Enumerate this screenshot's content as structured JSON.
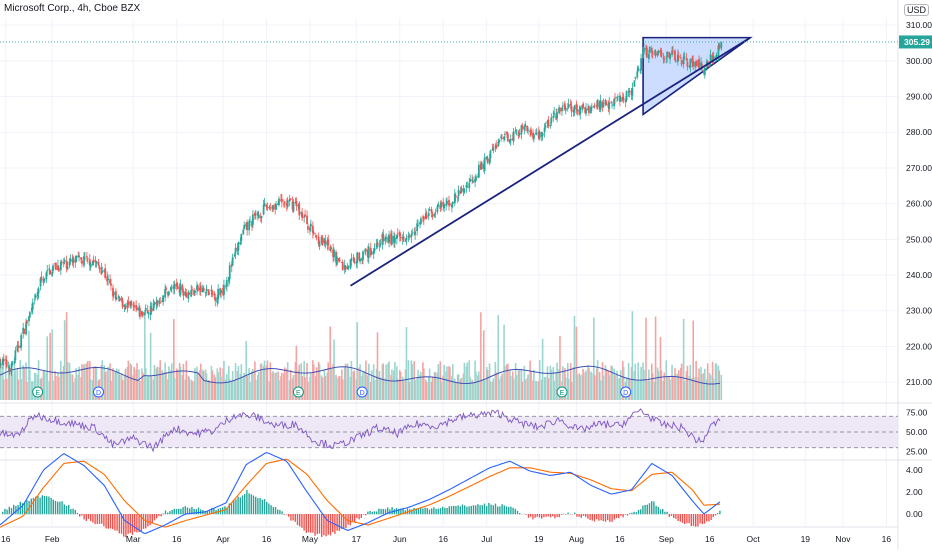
{
  "header": {
    "title": "Microsoft Corp., 4h, Cboe BZX",
    "currency": "USD"
  },
  "colors": {
    "up": "#26a69a",
    "down": "#ef5350",
    "volume_up": "#9ad6cf",
    "volume_down": "#f5a3a2",
    "volume_ma": "#3f51b5",
    "trendline": "#1a237e",
    "triangle_fill": "#bbd1ff",
    "last_price": "#26a69a",
    "rsi": "#7e57c2",
    "rsi_band": "#ede7f6",
    "macd_line": "#2962ff",
    "signal_line": "#ff6d00",
    "hist_up": "#26a69a",
    "hist_down": "#ef5350"
  },
  "chart_data": {
    "type": "candlestick",
    "price_axis": {
      "min": 205,
      "max": 312,
      "ticks": [
        310,
        300,
        290,
        280,
        270,
        260,
        250,
        240,
        230,
        220,
        210
      ]
    },
    "last_price": 305.29,
    "time_axis": {
      "start": "2021-01-14",
      "end": "2021-11-20",
      "ticks": [
        {
          "label": "16",
          "date": "2021-01-16"
        },
        {
          "label": "Feb",
          "date": "2021-02-01"
        },
        {
          "label": "Mar",
          "date": "2021-03-01"
        },
        {
          "label": "16",
          "date": "2021-03-16"
        },
        {
          "label": "Apr",
          "date": "2021-04-01"
        },
        {
          "label": "16",
          "date": "2021-04-16"
        },
        {
          "label": "May",
          "date": "2021-05-01"
        },
        {
          "label": "17",
          "date": "2021-05-17"
        },
        {
          "label": "Jun",
          "date": "2021-06-01"
        },
        {
          "label": "16",
          "date": "2021-06-16"
        },
        {
          "label": "Jul",
          "date": "2021-07-01"
        },
        {
          "label": "19",
          "date": "2021-07-19"
        },
        {
          "label": "Aug",
          "date": "2021-08-01"
        },
        {
          "label": "16",
          "date": "2021-08-16"
        },
        {
          "label": "Sep",
          "date": "2021-09-01"
        },
        {
          "label": "16",
          "date": "2021-09-16"
        },
        {
          "label": "Oct",
          "date": "2021-10-01"
        },
        {
          "label": "19",
          "date": "2021-10-19"
        },
        {
          "label": "Nov",
          "date": "2021-11-01"
        },
        {
          "label": "16",
          "date": "2021-11-16"
        }
      ]
    },
    "close_path": [
      [
        "2021-01-14",
        216
      ],
      [
        "2021-01-18",
        214
      ],
      [
        "2021-01-22",
        224
      ],
      [
        "2021-01-26",
        232
      ],
      [
        "2021-01-28",
        238
      ],
      [
        "2021-02-01",
        242
      ],
      [
        "2021-02-05",
        243
      ],
      [
        "2021-02-10",
        244
      ],
      [
        "2021-02-15",
        244
      ],
      [
        "2021-02-19",
        241
      ],
      [
        "2021-02-23",
        233
      ],
      [
        "2021-02-26",
        232
      ],
      [
        "2021-03-04",
        229
      ],
      [
        "2021-03-08",
        231
      ],
      [
        "2021-03-12",
        235
      ],
      [
        "2021-03-16",
        237
      ],
      [
        "2021-03-20",
        235
      ],
      [
        "2021-03-24",
        236
      ],
      [
        "2021-03-29",
        234
      ],
      [
        "2021-04-01",
        236
      ],
      [
        "2021-04-05",
        245
      ],
      [
        "2021-04-08",
        252
      ],
      [
        "2021-04-12",
        256
      ],
      [
        "2021-04-16",
        259
      ],
      [
        "2021-04-21",
        260
      ],
      [
        "2021-04-26",
        260
      ],
      [
        "2021-04-29",
        256
      ],
      [
        "2021-05-03",
        251
      ],
      [
        "2021-05-07",
        248
      ],
      [
        "2021-05-11",
        244
      ],
      [
        "2021-05-13",
        242
      ],
      [
        "2021-05-17",
        245
      ],
      [
        "2021-05-21",
        246
      ],
      [
        "2021-05-26",
        250
      ],
      [
        "2021-05-31",
        250
      ],
      [
        "2021-06-03",
        251
      ],
      [
        "2021-06-07",
        254
      ],
      [
        "2021-06-11",
        257
      ],
      [
        "2021-06-16",
        259
      ],
      [
        "2021-06-21",
        262
      ],
      [
        "2021-06-25",
        266
      ],
      [
        "2021-06-30",
        271
      ],
      [
        "2021-07-05",
        277
      ],
      [
        "2021-07-09",
        279
      ],
      [
        "2021-07-14",
        281
      ],
      [
        "2021-07-19",
        279
      ],
      [
        "2021-07-24",
        284
      ],
      [
        "2021-07-28",
        287
      ],
      [
        "2021-08-02",
        286
      ],
      [
        "2021-08-06",
        287
      ],
      [
        "2021-08-10",
        288
      ],
      [
        "2021-08-14",
        289
      ],
      [
        "2021-08-18",
        290
      ],
      [
        "2021-08-21",
        293
      ],
      [
        "2021-08-24",
        302
      ],
      [
        "2021-08-27",
        303
      ],
      [
        "2021-08-31",
        302
      ],
      [
        "2021-09-04",
        301
      ],
      [
        "2021-09-08",
        300
      ],
      [
        "2021-09-11",
        299
      ],
      [
        "2021-09-14",
        298
      ],
      [
        "2021-09-17",
        301
      ],
      [
        "2021-09-20",
        305
      ]
    ],
    "ascending_trendline": {
      "from": [
        "2021-05-15",
        237.0
      ],
      "to": [
        "2021-09-30",
        306.5
      ]
    },
    "triangle": {
      "top": [
        "2021-08-24",
        306.5
      ],
      "right": [
        "2021-09-30",
        306.5
      ],
      "bottom": [
        "2021-08-24",
        285.0
      ]
    },
    "events": [
      {
        "type": "earnings",
        "label": "E",
        "date": "2021-01-27"
      },
      {
        "type": "dividend",
        "label": "D",
        "date": "2021-02-17"
      },
      {
        "type": "earnings",
        "label": "E",
        "date": "2021-04-27"
      },
      {
        "type": "dividend",
        "label": "D",
        "date": "2021-05-19"
      },
      {
        "type": "earnings",
        "label": "E",
        "date": "2021-07-27"
      },
      {
        "type": "dividend",
        "label": "D",
        "date": "2021-08-18"
      }
    ],
    "rsi": {
      "axis": {
        "ticks": [
          75.0,
          50.0,
          25.0
        ]
      },
      "upper": 70,
      "lower": 30,
      "path": [
        [
          "2021-01-14",
          48
        ],
        [
          "2021-01-20",
          45
        ],
        [
          "2021-01-26",
          72
        ],
        [
          "2021-02-02",
          65
        ],
        [
          "2021-02-09",
          60
        ],
        [
          "2021-02-16",
          55
        ],
        [
          "2021-02-22",
          33
        ],
        [
          "2021-03-01",
          42
        ],
        [
          "2021-03-08",
          30
        ],
        [
          "2021-03-15",
          55
        ],
        [
          "2021-03-22",
          48
        ],
        [
          "2021-03-29",
          52
        ],
        [
          "2021-04-05",
          72
        ],
        [
          "2021-04-12",
          70
        ],
        [
          "2021-04-19",
          58
        ],
        [
          "2021-04-26",
          60
        ],
        [
          "2021-05-03",
          38
        ],
        [
          "2021-05-10",
          32
        ],
        [
          "2021-05-17",
          42
        ],
        [
          "2021-05-24",
          55
        ],
        [
          "2021-05-31",
          48
        ],
        [
          "2021-06-07",
          60
        ],
        [
          "2021-06-14",
          58
        ],
        [
          "2021-06-21",
          68
        ],
        [
          "2021-06-28",
          72
        ],
        [
          "2021-07-05",
          74
        ],
        [
          "2021-07-12",
          62
        ],
        [
          "2021-07-19",
          56
        ],
        [
          "2021-07-26",
          66
        ],
        [
          "2021-08-02",
          52
        ],
        [
          "2021-08-09",
          60
        ],
        [
          "2021-08-16",
          58
        ],
        [
          "2021-08-23",
          78
        ],
        [
          "2021-08-30",
          60
        ],
        [
          "2021-09-06",
          56
        ],
        [
          "2021-09-13",
          36
        ],
        [
          "2021-09-17",
          60
        ],
        [
          "2021-09-20",
          64
        ]
      ]
    },
    "macd": {
      "axis": {
        "ticks": [
          4.0,
          2.0,
          0.0
        ]
      },
      "macd_path": [
        [
          "2021-01-14",
          -1.0
        ],
        [
          "2021-01-22",
          0.8
        ],
        [
          "2021-01-29",
          4.0
        ],
        [
          "2021-02-05",
          5.5
        ],
        [
          "2021-02-12",
          4.4
        ],
        [
          "2021-02-19",
          2.6
        ],
        [
          "2021-02-26",
          -0.6
        ],
        [
          "2021-03-05",
          -1.8
        ],
        [
          "2021-03-12",
          -1.0
        ],
        [
          "2021-03-19",
          0.0
        ],
        [
          "2021-03-26",
          0.2
        ],
        [
          "2021-04-02",
          1.0
        ],
        [
          "2021-04-09",
          4.5
        ],
        [
          "2021-04-16",
          5.6
        ],
        [
          "2021-04-23",
          4.8
        ],
        [
          "2021-04-30",
          2.0
        ],
        [
          "2021-05-07",
          -0.6
        ],
        [
          "2021-05-14",
          -1.5
        ],
        [
          "2021-05-21",
          -0.8
        ],
        [
          "2021-05-28",
          0.1
        ],
        [
          "2021-06-04",
          0.6
        ],
        [
          "2021-06-11",
          1.3
        ],
        [
          "2021-06-18",
          2.2
        ],
        [
          "2021-06-25",
          3.2
        ],
        [
          "2021-07-02",
          4.2
        ],
        [
          "2021-07-09",
          4.8
        ],
        [
          "2021-07-16",
          3.9
        ],
        [
          "2021-07-23",
          3.5
        ],
        [
          "2021-07-30",
          3.8
        ],
        [
          "2021-08-06",
          2.6
        ],
        [
          "2021-08-13",
          1.8
        ],
        [
          "2021-08-20",
          2.2
        ],
        [
          "2021-08-27",
          4.6
        ],
        [
          "2021-09-03",
          3.5
        ],
        [
          "2021-09-10",
          1.2
        ],
        [
          "2021-09-14",
          0.0
        ],
        [
          "2021-09-20",
          1.2
        ]
      ],
      "signal_path": [
        [
          "2021-01-14",
          -1.2
        ],
        [
          "2021-01-22",
          -0.2
        ],
        [
          "2021-01-29",
          2.4
        ],
        [
          "2021-02-05",
          4.6
        ],
        [
          "2021-02-12",
          4.8
        ],
        [
          "2021-02-19",
          3.6
        ],
        [
          "2021-02-26",
          1.2
        ],
        [
          "2021-03-05",
          -0.6
        ],
        [
          "2021-03-12",
          -1.2
        ],
        [
          "2021-03-19",
          -0.6
        ],
        [
          "2021-03-26",
          -0.1
        ],
        [
          "2021-04-02",
          0.4
        ],
        [
          "2021-04-09",
          2.6
        ],
        [
          "2021-04-16",
          4.6
        ],
        [
          "2021-04-23",
          5.0
        ],
        [
          "2021-04-30",
          3.6
        ],
        [
          "2021-05-07",
          1.2
        ],
        [
          "2021-05-14",
          -0.6
        ],
        [
          "2021-05-21",
          -1.0
        ],
        [
          "2021-05-28",
          -0.4
        ],
        [
          "2021-06-04",
          0.2
        ],
        [
          "2021-06-11",
          0.8
        ],
        [
          "2021-06-18",
          1.6
        ],
        [
          "2021-06-25",
          2.5
        ],
        [
          "2021-07-02",
          3.4
        ],
        [
          "2021-07-09",
          4.2
        ],
        [
          "2021-07-16",
          4.2
        ],
        [
          "2021-07-23",
          3.8
        ],
        [
          "2021-07-30",
          3.7
        ],
        [
          "2021-08-06",
          3.1
        ],
        [
          "2021-08-13",
          2.3
        ],
        [
          "2021-08-20",
          2.1
        ],
        [
          "2021-08-27",
          3.6
        ],
        [
          "2021-09-03",
          3.8
        ],
        [
          "2021-09-10",
          2.2
        ],
        [
          "2021-09-14",
          0.8
        ],
        [
          "2021-09-20",
          0.9
        ]
      ]
    }
  }
}
